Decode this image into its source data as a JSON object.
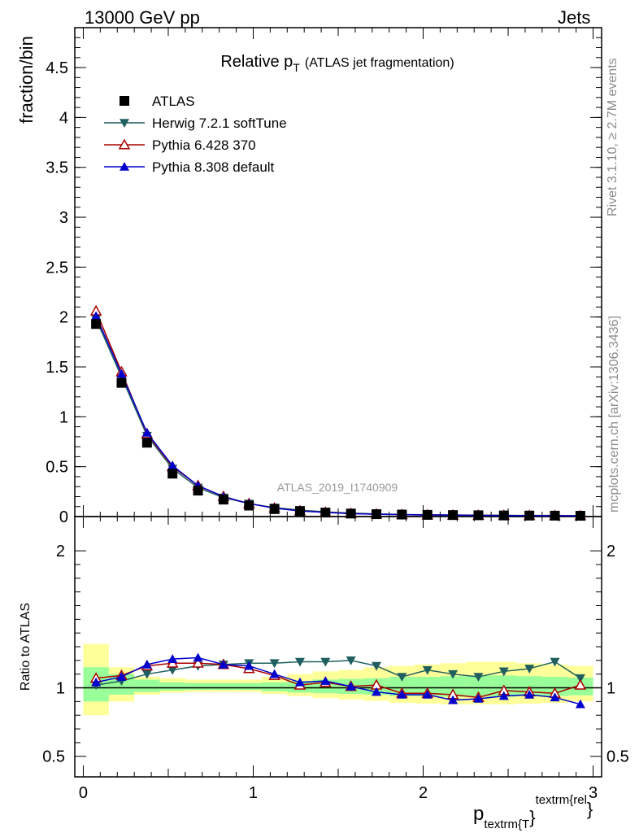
{
  "header": {
    "left": "13000 GeV pp",
    "right": "Jets"
  },
  "side_labels": {
    "rivet": "Rivet 3.1.10, ≥ 2.7M events",
    "mcplots": "mcplots.cern.ch [arXiv:1306.3436]"
  },
  "watermark": "ATLAS_2019_I1740909",
  "main_title": {
    "text": "Relative p",
    "sub": "T",
    "small": "(ATLAS jet fragmentation)"
  },
  "ylabel_main": "fraction/bin",
  "ylabel_ratio": "Ratio to ATLAS",
  "xlabel": {
    "p": "p",
    "sub": "textrm{T",
    "brace": "}",
    "sup": "textrm{rel",
    "close": "}"
  },
  "colors": {
    "data": "#000000",
    "herwig": "#1f5f5f",
    "pythia6": "#aa0000",
    "pythia8": "#0000cc",
    "band_green": "#99ff99",
    "band_yellow": "#ffff99"
  },
  "chart_data": [
    {
      "type": "scatter",
      "panel": "main",
      "xlim": [
        -0.05,
        3.05
      ],
      "ylim": [
        0,
        4.9
      ],
      "yticks": [
        0,
        0.5,
        1,
        1.5,
        2,
        2.5,
        3,
        3.5,
        4,
        4.5
      ],
      "ytick_labels": [
        "0",
        "0.5",
        "1",
        "1.5",
        "2",
        "2.5",
        "3",
        "3.5",
        "4",
        "4.5"
      ],
      "x": [
        0.075,
        0.225,
        0.375,
        0.525,
        0.675,
        0.825,
        0.975,
        1.125,
        1.275,
        1.425,
        1.575,
        1.725,
        1.875,
        2.025,
        2.175,
        2.325,
        2.475,
        2.625,
        2.775,
        2.925
      ],
      "series": [
        {
          "name": "ATLAS",
          "key": "data",
          "marker": "square",
          "values": [
            1.93,
            1.34,
            0.74,
            0.43,
            0.26,
            0.17,
            0.11,
            0.075,
            0.055,
            0.04,
            0.03,
            0.024,
            0.02,
            0.017,
            0.015,
            0.013,
            0.011,
            0.01,
            0.009,
            0.008
          ]
        },
        {
          "name": "Herwig 7.2.1 softTune",
          "key": "herwig",
          "marker": "tri-down",
          "values": [
            1.98,
            1.4,
            0.81,
            0.48,
            0.29,
            0.19,
            0.13,
            0.09,
            0.065,
            0.047,
            0.035,
            0.027,
            0.021,
            0.018,
            0.016,
            0.014,
            0.012,
            0.011,
            0.011,
            0.009
          ]
        },
        {
          "name": "Pythia 6.428 370",
          "key": "pythia6",
          "marker": "tri-up-open",
          "values": [
            2.06,
            1.45,
            0.83,
            0.5,
            0.31,
            0.2,
            0.13,
            0.085,
            0.057,
            0.042,
            0.03,
            0.024,
            0.019,
            0.016,
            0.014,
            0.012,
            0.011,
            0.0095,
            0.0085,
            0.0082
          ]
        },
        {
          "name": "Pythia 8.308 default",
          "key": "pythia8",
          "marker": "tri-up",
          "values": [
            2.01,
            1.43,
            0.84,
            0.51,
            0.31,
            0.2,
            0.13,
            0.085,
            0.056,
            0.042,
            0.03,
            0.023,
            0.019,
            0.016,
            0.014,
            0.012,
            0.0105,
            0.0095,
            0.0085,
            0.007
          ]
        }
      ]
    },
    {
      "type": "scatter",
      "panel": "ratio",
      "xlim": [
        -0.05,
        3.05
      ],
      "ylim": [
        0.35,
        2.25
      ],
      "yticks": [
        0.5,
        1,
        2
      ],
      "ytick_labels": [
        "0.5",
        "1",
        "2"
      ],
      "xticks": [
        0,
        1,
        2,
        3
      ],
      "xtick_labels": [
        "0",
        "1",
        "2",
        "3"
      ],
      "x": [
        0.075,
        0.225,
        0.375,
        0.525,
        0.675,
        0.825,
        0.975,
        1.125,
        1.275,
        1.425,
        1.575,
        1.725,
        1.875,
        2.025,
        2.175,
        2.325,
        2.475,
        2.625,
        2.775,
        2.925
      ],
      "band_green": [
        [
          0.9,
          1.15
        ],
        [
          0.95,
          1.1
        ],
        [
          0.97,
          1.06
        ],
        [
          0.98,
          1.04
        ],
        [
          0.985,
          1.035
        ],
        [
          0.985,
          1.035
        ],
        [
          0.985,
          1.035
        ],
        [
          0.975,
          1.04
        ],
        [
          0.965,
          1.05
        ],
        [
          0.96,
          1.06
        ],
        [
          0.955,
          1.065
        ],
        [
          0.95,
          1.07
        ],
        [
          0.94,
          1.08
        ],
        [
          0.94,
          1.08
        ],
        [
          0.935,
          1.085
        ],
        [
          0.935,
          1.09
        ],
        [
          0.935,
          1.09
        ],
        [
          0.94,
          1.085
        ],
        [
          0.94,
          1.08
        ],
        [
          0.945,
          1.075
        ]
      ],
      "band_yellow": [
        [
          0.8,
          1.32
        ],
        [
          0.9,
          1.15
        ],
        [
          0.95,
          1.08
        ],
        [
          0.965,
          1.07
        ],
        [
          0.97,
          1.06
        ],
        [
          0.97,
          1.06
        ],
        [
          0.97,
          1.06
        ],
        [
          0.955,
          1.08
        ],
        [
          0.94,
          1.1
        ],
        [
          0.925,
          1.12
        ],
        [
          0.915,
          1.13
        ],
        [
          0.905,
          1.15
        ],
        [
          0.89,
          1.16
        ],
        [
          0.885,
          1.17
        ],
        [
          0.88,
          1.18
        ],
        [
          0.88,
          1.19
        ],
        [
          0.88,
          1.19
        ],
        [
          0.885,
          1.18
        ],
        [
          0.89,
          1.17
        ],
        [
          0.9,
          1.16
        ]
      ],
      "series": [
        {
          "name": "Herwig 7.2.1 softTune",
          "key": "herwig",
          "marker": "tri-down",
          "values": [
            1.02,
            1.05,
            1.1,
            1.13,
            1.16,
            1.17,
            1.18,
            1.18,
            1.19,
            1.19,
            1.2,
            1.16,
            1.08,
            1.13,
            1.1,
            1.08,
            1.12,
            1.14,
            1.19,
            1.07
          ]
        },
        {
          "name": "Pythia 6.428 370",
          "key": "pythia6",
          "marker": "tri-up-open",
          "values": [
            1.07,
            1.09,
            1.16,
            1.18,
            1.18,
            1.17,
            1.14,
            1.09,
            1.02,
            1.04,
            1.01,
            1.02,
            0.96,
            0.96,
            0.95,
            0.93,
            0.98,
            0.97,
            0.96,
            1.02
          ]
        },
        {
          "name": "Pythia 8.308 default",
          "key": "pythia8",
          "marker": "tri-up",
          "values": [
            1.04,
            1.08,
            1.17,
            1.21,
            1.22,
            1.17,
            1.16,
            1.1,
            1.04,
            1.05,
            1.01,
            0.97,
            0.95,
            0.95,
            0.91,
            0.92,
            0.94,
            0.95,
            0.93,
            0.88
          ]
        }
      ]
    }
  ]
}
